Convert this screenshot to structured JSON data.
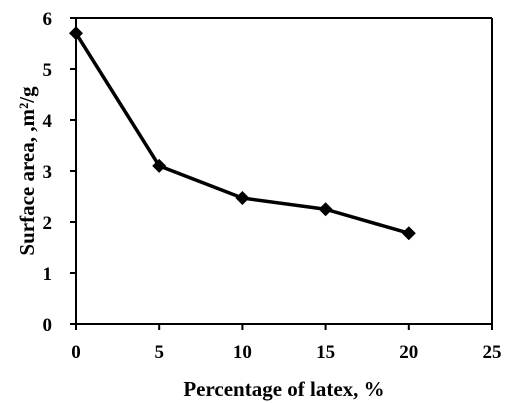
{
  "chart_data": {
    "type": "line",
    "title": "",
    "xlabel": "Percentage of latex, %",
    "ylabel": "Surface area, ,m²/g",
    "xlim": [
      0,
      25
    ],
    "ylim": [
      0,
      6
    ],
    "xticks": [
      "0",
      "5",
      "10",
      "15",
      "20",
      "25"
    ],
    "yticks": [
      "0",
      "1",
      "2",
      "3",
      "4",
      "5",
      "6"
    ],
    "grid": false,
    "legend": "none",
    "series": [
      {
        "x": [
          0,
          5,
          10,
          15,
          20
        ],
        "values": [
          5.7,
          3.1,
          2.47,
          2.25,
          1.78
        ],
        "color": "#000000",
        "marker": "diamond"
      }
    ]
  }
}
